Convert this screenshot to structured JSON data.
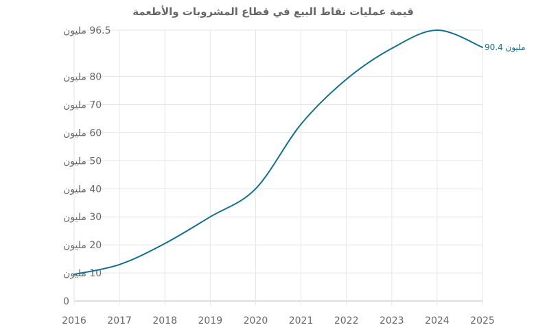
{
  "chart_data": {
    "type": "line",
    "title": "قيمة عمليات نقاط البيع في قطاع المشروبات والأطعمة",
    "xlabel": "",
    "ylabel": "",
    "x": [
      "2016",
      "2017",
      "2018",
      "2019",
      "2020",
      "2021",
      "2022",
      "2023",
      "2024",
      "2025"
    ],
    "series": [
      {
        "values": [
          9.5,
          13,
          20.5,
          30,
          40,
          63,
          79,
          90,
          96.5,
          90.4
        ]
      }
    ],
    "y_ticks": [
      {
        "value": 0,
        "label": "0"
      },
      {
        "value": 10,
        "label": "10 مليون"
      },
      {
        "value": 20,
        "label": "20 مليون"
      },
      {
        "value": 30,
        "label": "30 مليون"
      },
      {
        "value": 40,
        "label": "40 مليون"
      },
      {
        "value": 50,
        "label": "50 مليون"
      },
      {
        "value": 60,
        "label": "60 مليون"
      },
      {
        "value": 70,
        "label": "70 مليون"
      },
      {
        "value": 80,
        "label": "80 مليون"
      },
      {
        "value": 96.5,
        "label": "96.5 مليون"
      }
    ],
    "ylim": [
      0,
      96.5
    ],
    "grid": true,
    "end_label": "90.4 مليون",
    "colors": {
      "line": "#0f6f91",
      "text": "#666666",
      "grid": "#e6e6e6"
    }
  }
}
